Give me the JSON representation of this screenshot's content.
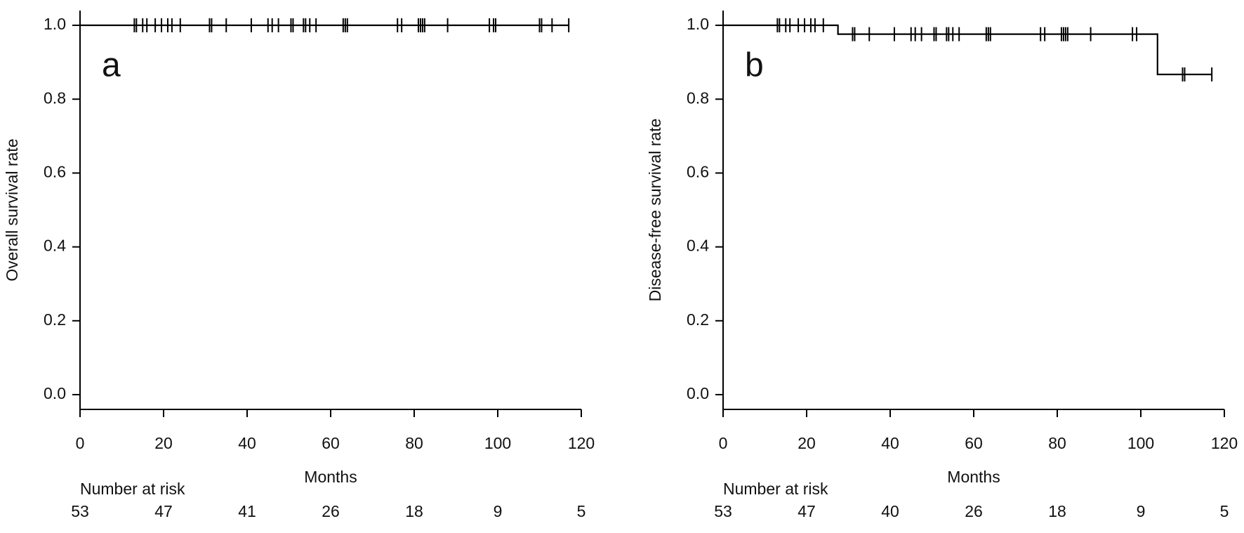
{
  "chart_data": [
    {
      "type": "step",
      "panel_label": "a",
      "xlabel": "Months",
      "ylabel": "Overall survival rate",
      "xlim": [
        0,
        120
      ],
      "ylim": [
        -0.04,
        1.04
      ],
      "xticks": [
        0,
        20,
        40,
        60,
        80,
        100,
        120
      ],
      "yticks": [
        {
          "value": 0,
          "label": "0.0"
        },
        {
          "value": 0.2,
          "label": "0.2"
        },
        {
          "value": 0.4,
          "label": "0.4"
        },
        {
          "value": 0.6,
          "label": "0.6"
        },
        {
          "value": 0.8,
          "label": "0.8"
        },
        {
          "value": 1,
          "label": "1.0"
        }
      ],
      "color": "#000000",
      "x": [
        0,
        117
      ],
      "values": [
        1,
        1
      ],
      "censor_x": [
        13,
        13.5,
        15,
        16,
        18,
        19.5,
        21,
        22,
        24,
        31,
        31.5,
        35,
        41,
        45,
        46,
        47.5,
        50.5,
        51,
        53.5,
        54,
        55,
        56.5,
        63,
        63.5,
        64,
        76,
        77,
        81,
        81.5,
        82,
        82.5,
        88,
        98,
        99,
        99.5,
        110,
        110.5,
        113,
        117
      ],
      "censor_y": [
        1,
        1,
        1,
        1,
        1,
        1,
        1,
        1,
        1,
        1,
        1,
        1,
        1,
        1,
        1,
        1,
        1,
        1,
        1,
        1,
        1,
        1,
        1,
        1,
        1,
        1,
        1,
        1,
        1,
        1,
        1,
        1,
        1,
        1,
        1,
        1,
        1,
        1,
        1
      ],
      "risk_table": {
        "title": "Number at risk",
        "x": [
          0,
          20,
          40,
          60,
          80,
          100,
          120
        ],
        "values": [
          53,
          47,
          41,
          26,
          18,
          9,
          5
        ]
      }
    },
    {
      "type": "step",
      "panel_label": "b",
      "xlabel": "Months",
      "ylabel": "Disease-free survival rate",
      "xlim": [
        0,
        120
      ],
      "ylim": [
        -0.04,
        1.04
      ],
      "xticks": [
        0,
        20,
        40,
        60,
        80,
        100,
        120
      ],
      "yticks": [
        {
          "value": 0,
          "label": "0.0"
        },
        {
          "value": 0.2,
          "label": "0.2"
        },
        {
          "value": 0.4,
          "label": "0.4"
        },
        {
          "value": 0.6,
          "label": "0.6"
        },
        {
          "value": 0.8,
          "label": "0.8"
        },
        {
          "value": 1,
          "label": "1.0"
        }
      ],
      "color": "#000000",
      "x": [
        0,
        27.5,
        104,
        117
      ],
      "values": [
        1,
        0.976,
        0.867,
        0.867
      ],
      "censor_x": [
        13,
        13.5,
        15,
        16,
        18,
        19.5,
        21,
        22,
        24,
        31,
        31.5,
        35,
        41,
        45,
        46,
        47.5,
        50.5,
        51,
        53.5,
        54,
        55,
        56.5,
        63,
        63.5,
        64,
        76,
        77,
        81,
        81.5,
        82,
        82.5,
        88,
        98,
        99,
        110,
        110.5,
        117
      ],
      "censor_y": [
        1,
        1,
        1,
        1,
        1,
        1,
        1,
        1,
        1,
        0.976,
        0.976,
        0.976,
        0.976,
        0.976,
        0.976,
        0.976,
        0.976,
        0.976,
        0.976,
        0.976,
        0.976,
        0.976,
        0.976,
        0.976,
        0.976,
        0.976,
        0.976,
        0.976,
        0.976,
        0.976,
        0.976,
        0.976,
        0.976,
        0.976,
        0.867,
        0.867,
        0.867
      ],
      "risk_table": {
        "title": "Number at risk",
        "x": [
          0,
          20,
          40,
          60,
          80,
          100,
          120
        ],
        "values": [
          53,
          47,
          40,
          26,
          18,
          9,
          5
        ]
      }
    }
  ]
}
